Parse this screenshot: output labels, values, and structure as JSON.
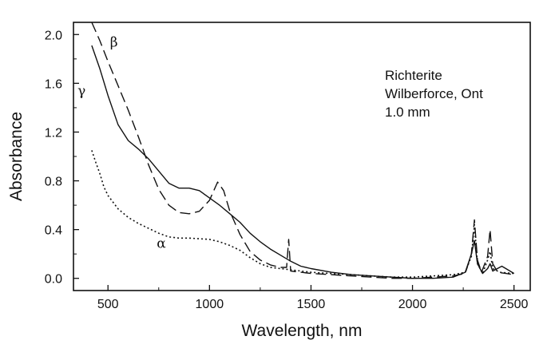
{
  "chart_data": {
    "type": "line",
    "xlabel": "Wavelength, nm",
    "ylabel": "Absorbance",
    "xlim": [
      330,
      2580
    ],
    "ylim": [
      -0.1,
      2.1
    ],
    "xticks": [
      "500",
      "1000",
      "1500",
      "2000",
      "2500"
    ],
    "xtick_values": [
      500,
      1000,
      1500,
      2000,
      2500
    ],
    "yticks": [
      "0.0",
      "0.4",
      "0.8",
      "1.2",
      "1.6",
      "2.0"
    ],
    "ytick_values": [
      0.0,
      0.4,
      0.8,
      1.2,
      1.6,
      2.0
    ],
    "annotation_lines": [
      "Richterite",
      "Wilberforce, Ont",
      "1.0 mm"
    ],
    "series": [
      {
        "name": "β",
        "style": "dashed",
        "points": [
          [
            420,
            2.1
          ],
          [
            460,
            1.95
          ],
          [
            500,
            1.78
          ],
          [
            550,
            1.58
          ],
          [
            600,
            1.38
          ],
          [
            650,
            1.16
          ],
          [
            700,
            0.93
          ],
          [
            750,
            0.73
          ],
          [
            800,
            0.6
          ],
          [
            850,
            0.54
          ],
          [
            900,
            0.53
          ],
          [
            950,
            0.55
          ],
          [
            1000,
            0.64
          ],
          [
            1040,
            0.79
          ],
          [
            1070,
            0.72
          ],
          [
            1100,
            0.55
          ],
          [
            1150,
            0.36
          ],
          [
            1200,
            0.22
          ],
          [
            1250,
            0.15
          ],
          [
            1300,
            0.11
          ],
          [
            1350,
            0.09
          ],
          [
            1380,
            0.09
          ],
          [
            1390,
            0.32
          ],
          [
            1400,
            0.06
          ],
          [
            1450,
            0.05
          ],
          [
            1500,
            0.04
          ],
          [
            1600,
            0.03
          ],
          [
            1700,
            0.02
          ],
          [
            1800,
            0.01
          ],
          [
            1900,
            0.0
          ],
          [
            2000,
            0.0
          ],
          [
            2100,
            0.01
          ],
          [
            2200,
            0.02
          ],
          [
            2260,
            0.04
          ],
          [
            2290,
            0.2
          ],
          [
            2305,
            0.48
          ],
          [
            2320,
            0.15
          ],
          [
            2340,
            0.05
          ],
          [
            2370,
            0.18
          ],
          [
            2382,
            0.4
          ],
          [
            2395,
            0.12
          ],
          [
            2420,
            0.05
          ],
          [
            2460,
            0.04
          ],
          [
            2500,
            0.03
          ]
        ]
      },
      {
        "name": "γ",
        "style": "solid",
        "points": [
          [
            420,
            1.91
          ],
          [
            460,
            1.72
          ],
          [
            500,
            1.5
          ],
          [
            550,
            1.26
          ],
          [
            600,
            1.13
          ],
          [
            650,
            1.06
          ],
          [
            700,
            0.98
          ],
          [
            750,
            0.88
          ],
          [
            800,
            0.78
          ],
          [
            850,
            0.74
          ],
          [
            900,
            0.74
          ],
          [
            950,
            0.72
          ],
          [
            1000,
            0.66
          ],
          [
            1050,
            0.6
          ],
          [
            1100,
            0.53
          ],
          [
            1150,
            0.46
          ],
          [
            1200,
            0.37
          ],
          [
            1250,
            0.3
          ],
          [
            1300,
            0.24
          ],
          [
            1350,
            0.19
          ],
          [
            1400,
            0.14
          ],
          [
            1450,
            0.1
          ],
          [
            1500,
            0.08
          ],
          [
            1600,
            0.05
          ],
          [
            1700,
            0.03
          ],
          [
            1800,
            0.02
          ],
          [
            1900,
            0.01
          ],
          [
            2000,
            0.0
          ],
          [
            2100,
            0.0
          ],
          [
            2200,
            0.01
          ],
          [
            2260,
            0.05
          ],
          [
            2290,
            0.2
          ],
          [
            2305,
            0.31
          ],
          [
            2320,
            0.12
          ],
          [
            2345,
            0.04
          ],
          [
            2370,
            0.08
          ],
          [
            2382,
            0.12
          ],
          [
            2395,
            0.06
          ],
          [
            2440,
            0.1
          ],
          [
            2470,
            0.07
          ],
          [
            2500,
            0.04
          ]
        ]
      },
      {
        "name": "α",
        "style": "dotted",
        "points": [
          [
            420,
            1.05
          ],
          [
            440,
            0.95
          ],
          [
            460,
            0.86
          ],
          [
            480,
            0.75
          ],
          [
            500,
            0.68
          ],
          [
            550,
            0.57
          ],
          [
            600,
            0.5
          ],
          [
            650,
            0.45
          ],
          [
            700,
            0.41
          ],
          [
            750,
            0.37
          ],
          [
            800,
            0.34
          ],
          [
            850,
            0.33
          ],
          [
            900,
            0.33
          ],
          [
            1000,
            0.32
          ],
          [
            1050,
            0.3
          ],
          [
            1100,
            0.27
          ],
          [
            1150,
            0.23
          ],
          [
            1200,
            0.17
          ],
          [
            1250,
            0.12
          ],
          [
            1300,
            0.09
          ],
          [
            1350,
            0.08
          ],
          [
            1400,
            0.07
          ],
          [
            1500,
            0.05
          ],
          [
            1600,
            0.04
          ],
          [
            1700,
            0.03
          ],
          [
            1800,
            0.02
          ],
          [
            1900,
            0.01
          ],
          [
            2000,
            0.01
          ],
          [
            2100,
            0.02
          ],
          [
            2200,
            0.03
          ],
          [
            2260,
            0.05
          ],
          [
            2290,
            0.18
          ],
          [
            2305,
            0.44
          ],
          [
            2320,
            0.12
          ],
          [
            2345,
            0.04
          ],
          [
            2370,
            0.15
          ],
          [
            2382,
            0.22
          ],
          [
            2395,
            0.08
          ],
          [
            2430,
            0.05
          ],
          [
            2500,
            0.04
          ]
        ]
      }
    ],
    "series_labels": [
      {
        "text": "β",
        "x": 510,
        "y": 1.9
      },
      {
        "text": "γ",
        "x": 350,
        "y": 1.5
      },
      {
        "text": "α",
        "x": 740,
        "y": 0.25
      }
    ]
  }
}
